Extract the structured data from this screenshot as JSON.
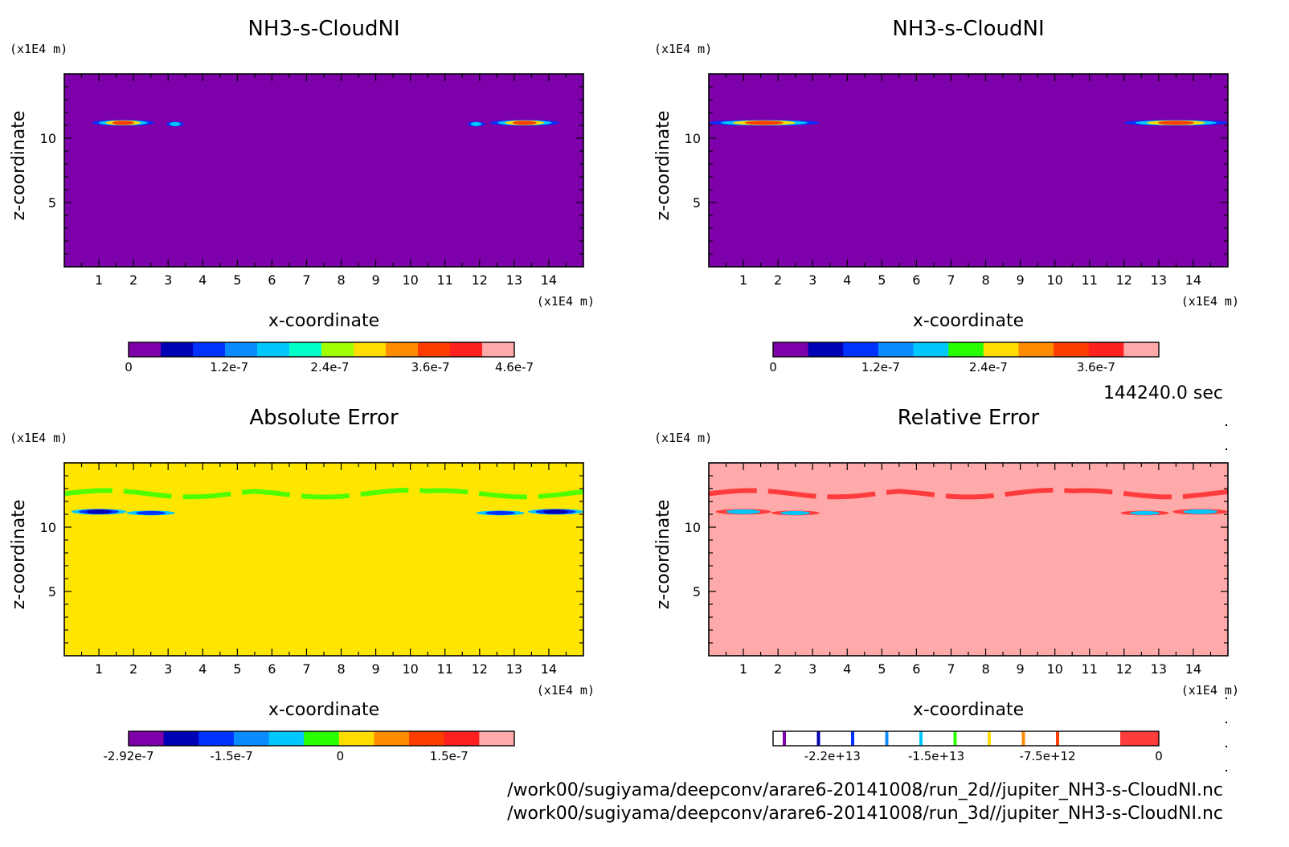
{
  "time_label": "144240.0 sec",
  "file_paths": [
    "/work00/sugiyama/deepconv/arare6-20141008/run_2d//jupiter_NH3-s-CloudNI.nc",
    "/work00/sugiyama/deepconv/arare6-20141008/run_3d//jupiter_NH3-s-CloudNI.nc"
  ],
  "chart_data": [
    {
      "type": "heatmap",
      "title": "NH3-s-CloudNI",
      "xlabel": "x-coordinate",
      "ylabel": "z-coordinate",
      "x_unit": "(x1E4 m)",
      "y_unit": "(x1E4 m)",
      "xlim": [
        0,
        15
      ],
      "ylim": [
        0,
        15
      ],
      "xticks": [
        1,
        2,
        3,
        4,
        5,
        6,
        7,
        8,
        9,
        10,
        11,
        12,
        13,
        14
      ],
      "yticks": [
        5,
        10
      ],
      "background_color": "#7d00aa",
      "colorbar": {
        "colors": [
          "#7d00aa",
          "#0000b4",
          "#0032ff",
          "#0a8cff",
          "#00c8ff",
          "#00ffc8",
          "#a0ff00",
          "#ffdd00",
          "#ff8c00",
          "#ff3c00",
          "#ff2020",
          "#ffaaaa"
        ],
        "labels": [
          "0",
          "1.2e-7",
          "2.4e-7",
          "3.6e-7",
          "4.6e-7"
        ],
        "label_values": [
          0,
          1.2e-07,
          2.4e-07,
          3.6e-07,
          4.6e-07
        ],
        "min": 0,
        "max": 4.6e-07
      },
      "features": [
        {
          "x": 1.7,
          "z": 11.2,
          "width": 1.8,
          "height": 0.45,
          "colors": [
            "#0032ff",
            "#00c8ff",
            "#ffdd00",
            "#ff3c00"
          ]
        },
        {
          "x": 3.2,
          "z": 11.1,
          "width": 0.5,
          "height": 0.2,
          "colors": [
            "#0032ff",
            "#00c8ff"
          ]
        },
        {
          "x": 11.9,
          "z": 11.1,
          "width": 0.5,
          "height": 0.2,
          "colors": [
            "#0032ff",
            "#00c8ff"
          ]
        },
        {
          "x": 13.3,
          "z": 11.2,
          "width": 2.0,
          "height": 0.45,
          "colors": [
            "#0032ff",
            "#00c8ff",
            "#ffdd00",
            "#ff3c00"
          ]
        }
      ]
    },
    {
      "type": "heatmap",
      "title": "NH3-s-CloudNI",
      "xlabel": "x-coordinate",
      "ylabel": "z-coordinate",
      "x_unit": "(x1E4 m)",
      "y_unit": "(x1E4 m)",
      "xlim": [
        0,
        15
      ],
      "ylim": [
        0,
        15
      ],
      "xticks": [
        1,
        2,
        3,
        4,
        5,
        6,
        7,
        8,
        9,
        10,
        11,
        12,
        13,
        14
      ],
      "yticks": [
        5,
        10
      ],
      "background_color": "#7d00aa",
      "colorbar": {
        "colors": [
          "#7d00aa",
          "#0000b4",
          "#0032ff",
          "#0a8cff",
          "#00c8ff",
          "#28ff00",
          "#ffdd00",
          "#ff8c00",
          "#ff3c00",
          "#ff2020",
          "#ffaaaa"
        ],
        "labels": [
          "0",
          "1.2e-7",
          "2.4e-7",
          "3.6e-7"
        ],
        "label_values": [
          0,
          1.2e-07,
          2.4e-07,
          3.6e-07
        ],
        "min": 0,
        "max": 4.3e-07
      },
      "features": [
        {
          "x": 1.6,
          "z": 11.2,
          "width": 3.2,
          "height": 0.45,
          "colors": [
            "#0032ff",
            "#00c8ff",
            "#ffdd00",
            "#ff3c00"
          ]
        },
        {
          "x": 13.5,
          "z": 11.2,
          "width": 3.0,
          "height": 0.45,
          "colors": [
            "#0032ff",
            "#00c8ff",
            "#ffdd00",
            "#ff3c00"
          ]
        }
      ]
    },
    {
      "type": "heatmap",
      "title": "Absolute Error",
      "xlabel": "x-coordinate",
      "ylabel": "z-coordinate",
      "x_unit": "(x1E4 m)",
      "y_unit": "(x1E4 m)",
      "xlim": [
        0,
        15
      ],
      "ylim": [
        0,
        15
      ],
      "xticks": [
        1,
        2,
        3,
        4,
        5,
        6,
        7,
        8,
        9,
        10,
        11,
        12,
        13,
        14
      ],
      "yticks": [
        5,
        10
      ],
      "background_color": "#ffe600",
      "colorbar": {
        "colors": [
          "#7d00aa",
          "#0000b4",
          "#0032ff",
          "#0a8cff",
          "#00c8ff",
          "#28ff00",
          "#ffdd00",
          "#ff8c00",
          "#ff3c00",
          "#ff2020",
          "#ffaaaa"
        ],
        "labels": [
          "-2.92e-7",
          "-1.5e-7",
          "0",
          "1.5e-7"
        ],
        "label_values": [
          -2.92e-07,
          -1.5e-07,
          0,
          1.5e-07
        ],
        "min": -2.92e-07,
        "max": 2.4e-07
      },
      "band": {
        "z": 12.6,
        "color": "#50ff00"
      },
      "features": [
        {
          "x": 1.0,
          "z": 11.2,
          "width": 1.6,
          "height": 0.45,
          "colors": [
            "#00c8ff",
            "#0032ff",
            "#0000b4"
          ]
        },
        {
          "x": 2.5,
          "z": 11.1,
          "width": 1.4,
          "height": 0.35,
          "colors": [
            "#00c8ff",
            "#0032ff"
          ]
        },
        {
          "x": 12.6,
          "z": 11.1,
          "width": 1.4,
          "height": 0.35,
          "colors": [
            "#00c8ff",
            "#0032ff"
          ]
        },
        {
          "x": 14.2,
          "z": 11.2,
          "width": 1.6,
          "height": 0.45,
          "colors": [
            "#00c8ff",
            "#0032ff",
            "#0000b4"
          ]
        }
      ]
    },
    {
      "type": "heatmap",
      "title": "Relative Error",
      "xlabel": "x-coordinate",
      "ylabel": "z-coordinate",
      "x_unit": "(x1E4 m)",
      "y_unit": "(x1E4 m)",
      "xlim": [
        0,
        15
      ],
      "ylim": [
        0,
        15
      ],
      "xticks": [
        1,
        2,
        3,
        4,
        5,
        6,
        7,
        8,
        9,
        10,
        11,
        12,
        13,
        14
      ],
      "yticks": [
        5,
        10
      ],
      "background_color": "#ffaaaa",
      "colorbar": {
        "colors": [
          "#7d00aa",
          "#0000b4",
          "#0032ff",
          "#0a8cff",
          "#00c8ff",
          "#28ff00",
          "#ffdd00",
          "#ff8c00",
          "#ff3c00",
          "#ff2020",
          "#ffaaaa"
        ],
        "labels": [
          "-2.2e+13",
          "-1.5e+13",
          "-7.5e+12",
          "0"
        ],
        "label_values": [
          -22000000000000.0,
          -15000000000000.0,
          -7500000000000.0,
          0
        ],
        "min": -26000000000000.0,
        "max": 0
      },
      "band": {
        "z": 12.6,
        "color": "#ff3c3c"
      },
      "features": [
        {
          "x": 1.0,
          "z": 11.2,
          "width": 1.6,
          "height": 0.45,
          "colors": [
            "#ff3c3c",
            "#00c8ff"
          ]
        },
        {
          "x": 2.5,
          "z": 11.1,
          "width": 1.4,
          "height": 0.35,
          "colors": [
            "#ff3c3c",
            "#00c8ff"
          ]
        },
        {
          "x": 12.6,
          "z": 11.1,
          "width": 1.4,
          "height": 0.35,
          "colors": [
            "#ff3c3c",
            "#00c8ff"
          ]
        },
        {
          "x": 14.2,
          "z": 11.2,
          "width": 1.6,
          "height": 0.45,
          "colors": [
            "#ff3c3c",
            "#00c8ff"
          ]
        }
      ]
    }
  ]
}
